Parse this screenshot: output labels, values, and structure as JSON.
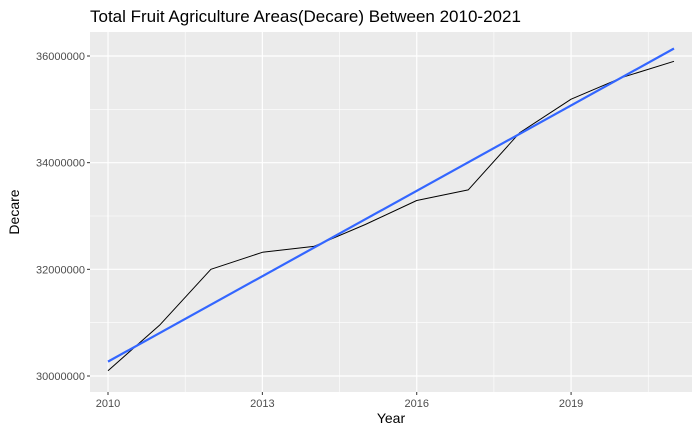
{
  "chart_data": {
    "type": "line",
    "title": "Total Fruit Agriculture Areas(Decare) Between 2010-2021",
    "xlabel": "Year",
    "ylabel": "Decare",
    "xlim": [
      2009.65,
      2021.35
    ],
    "ylim": [
      29700000,
      36450000
    ],
    "x_ticks": [
      2010,
      2013,
      2016,
      2019
    ],
    "x_tick_labels": [
      "2010",
      "2013",
      "2016",
      "2019"
    ],
    "y_ticks": [
      30000000,
      32000000,
      34000000,
      36000000
    ],
    "y_tick_labels": [
      "30000000",
      "32000000",
      "34000000",
      "36000000"
    ],
    "grid": true,
    "background": "#ebebeb",
    "series": [
      {
        "kind": "line",
        "color": "#000000",
        "x": [
          2010,
          2011,
          2012,
          2013,
          2014,
          2015,
          2016,
          2017,
          2018,
          2019,
          2020,
          2021
        ],
        "y": [
          30100000,
          30950000,
          32000000,
          32320000,
          32430000,
          32840000,
          33290000,
          33490000,
          34560000,
          35190000,
          35600000,
          35900000
        ]
      },
      {
        "kind": "trend",
        "color": "#3366ff",
        "x": [
          2010,
          2021
        ],
        "y": [
          30270000,
          36140000
        ]
      }
    ]
  }
}
